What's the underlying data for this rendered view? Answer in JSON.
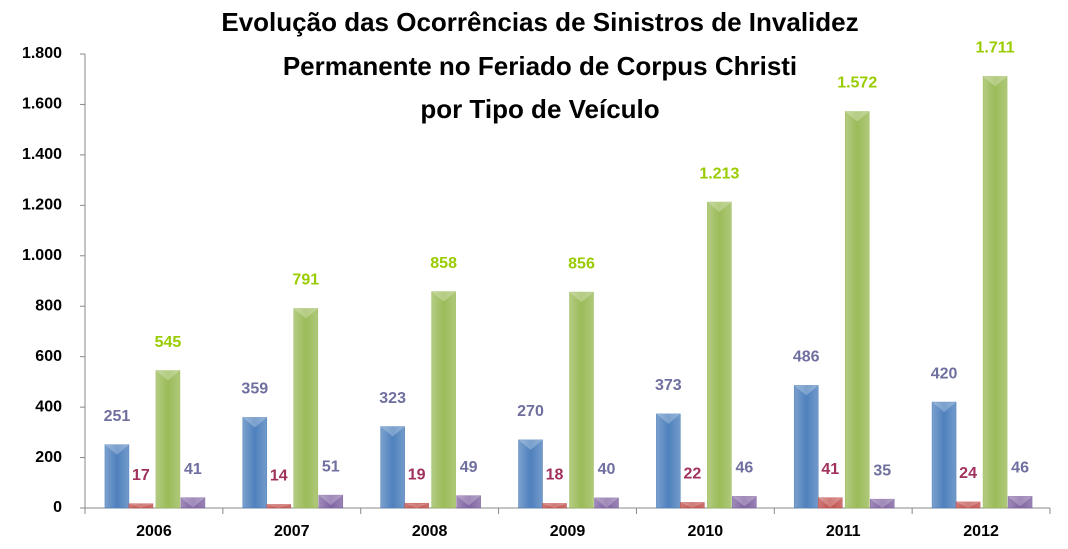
{
  "chart_data": {
    "type": "bar",
    "title_lines": [
      "Evolução das Ocorrências de Sinistros de Invalidez",
      "Permanente no Feriado de Corpus Christi",
      "por Tipo de Veículo"
    ],
    "categories": [
      "2006",
      "2007",
      "2008",
      "2009",
      "2010",
      "2011",
      "2012"
    ],
    "series": [
      {
        "color": "#4f81bd",
        "label_color": "#6f6f9f",
        "values": [
          251,
          359,
          323,
          270,
          373,
          486,
          420
        ]
      },
      {
        "color": "#c0504d",
        "label_color": "#a0305c",
        "values": [
          17,
          14,
          19,
          18,
          22,
          41,
          24
        ]
      },
      {
        "color": "#9bbb59",
        "label_color": "#99cc00",
        "values": [
          545,
          791,
          858,
          856,
          1213,
          1572,
          1711
        ],
        "value_labels": [
          "545",
          "791",
          "858",
          "856",
          "1.213",
          "1.572",
          "1.711"
        ]
      },
      {
        "color": "#8064a2",
        "label_color": "#6f6f9f",
        "values": [
          41,
          51,
          49,
          40,
          46,
          35,
          46
        ]
      }
    ],
    "ylim": [
      0,
      1800
    ],
    "yticks": [
      0,
      200,
      400,
      600,
      800,
      {
        "value": 1000,
        "label": "1.000"
      },
      {
        "value": 1200,
        "label": "1.200"
      },
      {
        "value": 1400,
        "label": "1.400"
      },
      {
        "value": 1600,
        "label": "1.600"
      },
      {
        "value": 1800,
        "label": "1.800"
      }
    ],
    "grid": false
  }
}
